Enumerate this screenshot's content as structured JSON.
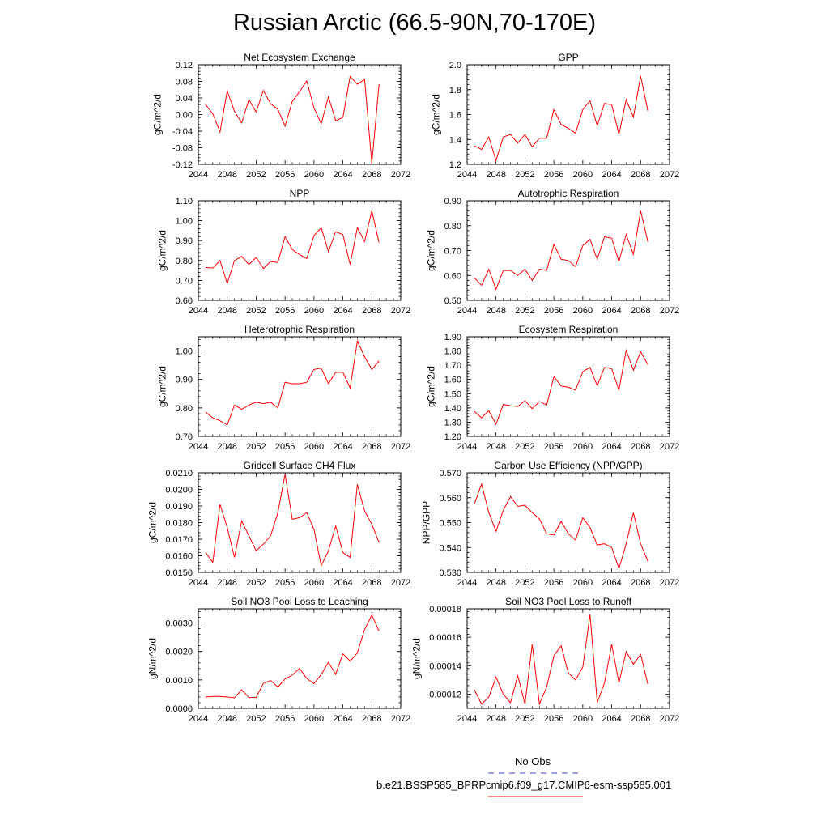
{
  "figure": {
    "title": "Russian Arctic (66.5-90N,70-170E)",
    "legend": [
      {
        "label": "No Obs",
        "style": "dashed",
        "color": "#3344cc"
      },
      {
        "label": "b.e21.BSSP585_BPRPcmip6.f09_g17.CMIP6-esm-ssp585.001",
        "style": "solid",
        "color": "#ff0000"
      }
    ]
  },
  "chart_data": [
    {
      "type": "line",
      "title": "Net Ecosystem Exchange",
      "ylabel": "gC/m^2/d",
      "xlim": [
        2044,
        2072
      ],
      "ylim": [
        -0.12,
        0.12
      ],
      "xticks": [
        "2044",
        "2048",
        "2052",
        "2056",
        "2060",
        "2064",
        "2068",
        "2072"
      ],
      "yticks": [
        "-0.12",
        "-0.08",
        "-0.04",
        "0.00",
        "0.04",
        "0.08",
        "0.12"
      ],
      "x": [
        2045,
        2046,
        2047,
        2048,
        2049,
        2050,
        2051,
        2052,
        2053,
        2054,
        2055,
        2056,
        2057,
        2058,
        2059,
        2060,
        2061,
        2062,
        2063,
        2064,
        2065,
        2066,
        2067,
        2068,
        2069
      ],
      "series": [
        {
          "color": "#ff0000",
          "values": [
            0.024,
            0.002,
            -0.042,
            0.057,
            0.008,
            -0.02,
            0.036,
            0.006,
            0.058,
            0.026,
            0.013,
            -0.028,
            0.032,
            0.055,
            0.081,
            0.016,
            -0.022,
            0.043,
            -0.015,
            -0.007,
            0.092,
            0.073,
            0.085,
            -0.118,
            0.073
          ]
        }
      ]
    },
    {
      "type": "line",
      "title": "GPP",
      "ylabel": "gC/m^2/d",
      "xlim": [
        2044,
        2072
      ],
      "ylim": [
        1.2,
        2.0
      ],
      "xticks": [
        "2044",
        "2048",
        "2052",
        "2056",
        "2060",
        "2064",
        "2068",
        "2072"
      ],
      "yticks": [
        "1.2",
        "1.4",
        "1.6",
        "1.8",
        "2.0"
      ],
      "x": [
        2045,
        2046,
        2047,
        2048,
        2049,
        2050,
        2051,
        2052,
        2053,
        2054,
        2055,
        2056,
        2057,
        2058,
        2059,
        2060,
        2061,
        2062,
        2063,
        2064,
        2065,
        2066,
        2067,
        2068,
        2069
      ],
      "series": [
        {
          "color": "#ff0000",
          "values": [
            1.35,
            1.32,
            1.42,
            1.23,
            1.42,
            1.44,
            1.37,
            1.44,
            1.34,
            1.41,
            1.41,
            1.64,
            1.52,
            1.49,
            1.45,
            1.64,
            1.71,
            1.51,
            1.69,
            1.68,
            1.44,
            1.72,
            1.58,
            1.91,
            1.63
          ]
        }
      ]
    },
    {
      "type": "line",
      "title": "NPP",
      "ylabel": "gC/m^2/d",
      "xlim": [
        2044,
        2072
      ],
      "ylim": [
        0.6,
        1.1
      ],
      "xticks": [
        "2044",
        "2048",
        "2052",
        "2056",
        "2060",
        "2064",
        "2068",
        "2072"
      ],
      "yticks": [
        "0.60",
        "0.70",
        "0.80",
        "0.90",
        "1.00",
        "1.10"
      ],
      "x": [
        2045,
        2046,
        2047,
        2048,
        2049,
        2050,
        2051,
        2052,
        2053,
        2054,
        2055,
        2056,
        2057,
        2058,
        2059,
        2060,
        2061,
        2062,
        2063,
        2064,
        2065,
        2066,
        2067,
        2068,
        2069
      ],
      "series": [
        {
          "color": "#ff0000",
          "values": [
            0.765,
            0.762,
            0.8,
            0.685,
            0.8,
            0.82,
            0.78,
            0.815,
            0.76,
            0.795,
            0.79,
            0.92,
            0.855,
            0.83,
            0.81,
            0.925,
            0.965,
            0.845,
            0.945,
            0.93,
            0.78,
            0.965,
            0.895,
            1.05,
            0.89
          ]
        }
      ]
    },
    {
      "type": "line",
      "title": "Autotrophic Respiration",
      "ylabel": "gC/m^2/d",
      "xlim": [
        2044,
        2072
      ],
      "ylim": [
        0.5,
        0.9
      ],
      "xticks": [
        "2044",
        "2048",
        "2052",
        "2056",
        "2060",
        "2064",
        "2068",
        "2072"
      ],
      "yticks": [
        "0.50",
        "0.60",
        "0.70",
        "0.80",
        "0.90"
      ],
      "x": [
        2045,
        2046,
        2047,
        2048,
        2049,
        2050,
        2051,
        2052,
        2053,
        2054,
        2055,
        2056,
        2057,
        2058,
        2059,
        2060,
        2061,
        2062,
        2063,
        2064,
        2065,
        2066,
        2067,
        2068,
        2069
      ],
      "series": [
        {
          "color": "#ff0000",
          "values": [
            0.59,
            0.56,
            0.625,
            0.545,
            0.62,
            0.62,
            0.6,
            0.625,
            0.58,
            0.625,
            0.62,
            0.725,
            0.665,
            0.66,
            0.635,
            0.72,
            0.745,
            0.665,
            0.755,
            0.75,
            0.655,
            0.765,
            0.685,
            0.86,
            0.735
          ]
        }
      ]
    },
    {
      "type": "line",
      "title": "Heterotrophic Respiration",
      "ylabel": "gC/m^2/d",
      "xlim": [
        2044,
        2072
      ],
      "ylim": [
        0.7,
        1.05
      ],
      "xticks": [
        "2044",
        "2048",
        "2052",
        "2056",
        "2060",
        "2064",
        "2068",
        "2072"
      ],
      "yticks": [
        "0.70",
        "0.80",
        "0.90",
        "1.00"
      ],
      "x": [
        2045,
        2046,
        2047,
        2048,
        2049,
        2050,
        2051,
        2052,
        2053,
        2054,
        2055,
        2056,
        2057,
        2058,
        2059,
        2060,
        2061,
        2062,
        2063,
        2064,
        2065,
        2066,
        2067,
        2068,
        2069
      ],
      "series": [
        {
          "color": "#ff0000",
          "values": [
            0.785,
            0.765,
            0.755,
            0.74,
            0.81,
            0.795,
            0.81,
            0.82,
            0.815,
            0.82,
            0.8,
            0.89,
            0.885,
            0.885,
            0.89,
            0.935,
            0.94,
            0.885,
            0.925,
            0.925,
            0.87,
            1.035,
            0.98,
            0.935,
            0.965
          ]
        }
      ]
    },
    {
      "type": "line",
      "title": "Ecosystem Respiration",
      "ylabel": "gC/m^2/d",
      "xlim": [
        2044,
        2072
      ],
      "ylim": [
        1.2,
        1.9
      ],
      "xticks": [
        "2044",
        "2048",
        "2052",
        "2056",
        "2060",
        "2064",
        "2068",
        "2072"
      ],
      "yticks": [
        "1.20",
        "1.30",
        "1.40",
        "1.50",
        "1.60",
        "1.70",
        "1.80",
        "1.90"
      ],
      "x": [
        2045,
        2046,
        2047,
        2048,
        2049,
        2050,
        2051,
        2052,
        2053,
        2054,
        2055,
        2056,
        2057,
        2058,
        2059,
        2060,
        2061,
        2062,
        2063,
        2064,
        2065,
        2066,
        2067,
        2068,
        2069
      ],
      "series": [
        {
          "color": "#ff0000",
          "values": [
            1.375,
            1.33,
            1.38,
            1.285,
            1.425,
            1.415,
            1.41,
            1.45,
            1.395,
            1.445,
            1.42,
            1.62,
            1.555,
            1.545,
            1.525,
            1.655,
            1.685,
            1.555,
            1.685,
            1.675,
            1.525,
            1.805,
            1.665,
            1.795,
            1.705
          ]
        }
      ]
    },
    {
      "type": "line",
      "title": "Gridcell Surface CH4 Flux",
      "ylabel": "gC/m^2/d",
      "xlim": [
        2044,
        2072
      ],
      "ylim": [
        0.015,
        0.021
      ],
      "xticks": [
        "2044",
        "2048",
        "2052",
        "2056",
        "2060",
        "2064",
        "2068",
        "2072"
      ],
      "yticks": [
        "0.0150",
        "0.0160",
        "0.0170",
        "0.0180",
        "0.0190",
        "0.0200",
        "0.0210"
      ],
      "x": [
        2045,
        2046,
        2047,
        2048,
        2049,
        2050,
        2051,
        2052,
        2053,
        2054,
        2055,
        2056,
        2057,
        2058,
        2059,
        2060,
        2061,
        2062,
        2063,
        2064,
        2065,
        2066,
        2067,
        2068,
        2069
      ],
      "series": [
        {
          "color": "#ff0000",
          "values": [
            0.0162,
            0.0156,
            0.0191,
            0.0177,
            0.0159,
            0.0181,
            0.0172,
            0.0163,
            0.0167,
            0.0172,
            0.0186,
            0.0209,
            0.0182,
            0.0183,
            0.0186,
            0.0176,
            0.0154,
            0.0163,
            0.0178,
            0.0162,
            0.0159,
            0.0203,
            0.0187,
            0.0179,
            0.0168
          ]
        }
      ]
    },
    {
      "type": "line",
      "title": "Carbon Use Efficiency (NPP/GPP)",
      "ylabel": "NPP/GPP",
      "xlim": [
        2044,
        2072
      ],
      "ylim": [
        0.53,
        0.57
      ],
      "xticks": [
        "2044",
        "2048",
        "2052",
        "2056",
        "2060",
        "2064",
        "2068",
        "2072"
      ],
      "yticks": [
        "0.530",
        "0.540",
        "0.550",
        "0.560",
        "0.570"
      ],
      "x": [
        2045,
        2046,
        2047,
        2048,
        2049,
        2050,
        2051,
        2052,
        2053,
        2054,
        2055,
        2056,
        2057,
        2058,
        2059,
        2060,
        2061,
        2062,
        2063,
        2064,
        2065,
        2066,
        2067,
        2068,
        2069
      ],
      "series": [
        {
          "color": "#ff0000",
          "values": [
            0.5575,
            0.5655,
            0.554,
            0.5465,
            0.555,
            0.5605,
            0.5565,
            0.557,
            0.554,
            0.5515,
            0.5455,
            0.545,
            0.5505,
            0.5455,
            0.543,
            0.552,
            0.548,
            0.541,
            0.5415,
            0.54,
            0.5315,
            0.5415,
            0.554,
            0.5415,
            0.5345
          ]
        }
      ]
    },
    {
      "type": "line",
      "title": "Soil NO3 Pool Loss to Leaching",
      "ylabel": "gN/m^2/d",
      "xlim": [
        2044,
        2072
      ],
      "ylim": [
        0,
        0.0035
      ],
      "xticks": [
        "2044",
        "2048",
        "2052",
        "2056",
        "2060",
        "2064",
        "2068",
        "2072"
      ],
      "yticks": [
        "0.0000",
        "0.0010",
        "0.0020",
        "0.0030"
      ],
      "x": [
        2045,
        2046,
        2047,
        2048,
        2049,
        2050,
        2051,
        2052,
        2053,
        2054,
        2055,
        2056,
        2057,
        2058,
        2059,
        2060,
        2061,
        2062,
        2063,
        2064,
        2065,
        2066,
        2067,
        2068,
        2069
      ],
      "series": [
        {
          "color": "#ff0000",
          "values": [
            0.0004,
            0.00042,
            0.00042,
            0.0004,
            0.00037,
            0.00065,
            0.00038,
            0.00038,
            0.00088,
            0.00098,
            0.00075,
            0.00103,
            0.00117,
            0.00141,
            0.00105,
            0.00087,
            0.00119,
            0.00162,
            0.0012,
            0.00192,
            0.00166,
            0.00195,
            0.00277,
            0.00328,
            0.00272
          ]
        }
      ]
    },
    {
      "type": "line",
      "title": "Soil NO3 Pool Loss to Runoff",
      "ylabel": "gN/m^2/d",
      "xlim": [
        2044,
        2072
      ],
      "ylim": [
        0.00011,
        0.00018
      ],
      "xticks": [
        "2044",
        "2048",
        "2052",
        "2056",
        "2060",
        "2064",
        "2068",
        "2072"
      ],
      "yticks": [
        "0.00012",
        "0.00014",
        "0.00016",
        "0.00018"
      ],
      "x": [
        2045,
        2046,
        2047,
        2048,
        2049,
        2050,
        2051,
        2052,
        2053,
        2054,
        2055,
        2056,
        2057,
        2058,
        2059,
        2060,
        2061,
        2062,
        2063,
        2064,
        2065,
        2066,
        2067,
        2068,
        2069
      ],
      "series": [
        {
          "color": "#ff0000",
          "values": [
            0.000123,
            0.000113,
            0.000118,
            0.000132,
            0.00012,
            0.000114,
            0.000133,
            0.000113,
            0.000155,
            0.000113,
            0.000125,
            0.000147,
            0.000154,
            0.000135,
            0.00013,
            0.000139,
            0.000176,
            0.000114,
            0.000128,
            0.000155,
            0.000128,
            0.00015,
            0.000141,
            0.000148,
            0.000127
          ]
        }
      ]
    }
  ]
}
